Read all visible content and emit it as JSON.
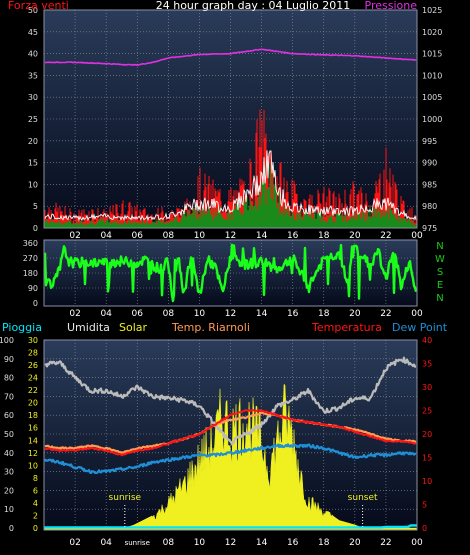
{
  "colors": {
    "background": "#000000",
    "plot_top": "#2a3c5a",
    "plot_bottom": "#050a1a",
    "grid": "#8891a5",
    "wind": "#ff1414",
    "gust": "#ffffff",
    "avg_wind": "#1a8a1a",
    "pressure": "#e030e0",
    "direction": "#19ff19",
    "nwsen": "#19cc19",
    "humidity": "#bbbbbb",
    "solar": "#f0f020",
    "temp_indoor": "#ff9955",
    "temperature": "#ff1414",
    "dew_point": "#1f8fd6",
    "rain": "#00e6ff",
    "sun_marker": "#ffffff"
  },
  "top_chart": {
    "title": "24 hour graph day : 04 Luglio 2011",
    "left_label": "Forza venti",
    "right_label": "Pressione",
    "left_ticks": [
      "0",
      "5",
      "10",
      "15",
      "20",
      "25",
      "30",
      "35",
      "40",
      "45",
      "50"
    ],
    "right_ticks": [
      "975",
      "980",
      "985",
      "990",
      "995",
      "1000",
      "1005",
      "1010",
      "1015",
      "1020",
      "1025"
    ],
    "x_ticks": [
      "02",
      "04",
      "06",
      "08",
      "10",
      "12",
      "14",
      "16",
      "18",
      "20",
      "22",
      "00"
    ]
  },
  "dir_chart": {
    "y_ticks": [
      "0",
      "90",
      "180",
      "270",
      "360"
    ],
    "compass": [
      "N",
      "W",
      "S",
      "E",
      "N"
    ],
    "x_ticks": [
      "02",
      "04",
      "06",
      "08",
      "10",
      "12",
      "14",
      "16",
      "18",
      "20",
      "22",
      "00"
    ]
  },
  "bottom_chart": {
    "legend": {
      "rain": "Pioggia",
      "humidity": "Umidita",
      "solar": "Solar",
      "indoor": "Temp. Riarnoli",
      "temperature": "Temperatura",
      "dew": "Dew Point"
    },
    "y1_ticks": [
      "0",
      "10",
      "20",
      "30",
      "40",
      "50",
      "60",
      "70",
      "80",
      "90",
      "100"
    ],
    "y2_ticks": [
      "0",
      "2",
      "4",
      "6",
      "8",
      "10",
      "12",
      "14",
      "16",
      "18",
      "20",
      "22",
      "24",
      "26",
      "28",
      "30"
    ],
    "y3_ticks": [
      "0",
      "5",
      "10",
      "15",
      "20",
      "25",
      "30",
      "35",
      "40"
    ],
    "x_ticks": [
      "02",
      "04",
      "sunrise",
      "08",
      "10",
      "12",
      "14",
      "16",
      "18",
      "20",
      "22",
      "00"
    ],
    "sunrise_label": "sunrise",
    "sunset_label": "sunset"
  },
  "chart_data": [
    {
      "type": "line",
      "title": "24 hour graph day : 04 Luglio 2011",
      "x_unit": "hour",
      "xlim": [
        0,
        24
      ],
      "ylabel": "Forza venti",
      "ylim": [
        0,
        50
      ],
      "y2label": "Pressione",
      "y2lim": [
        975,
        1025
      ],
      "series": [
        {
          "axis": "y",
          "x": [
            0,
            1,
            2,
            3,
            4,
            5,
            6,
            7,
            8,
            9,
            10,
            11,
            12,
            13,
            14,
            14.5,
            15,
            16,
            17,
            18,
            19,
            20,
            21,
            22,
            22.5,
            23,
            24
          ],
          "values": [
            5,
            4,
            3,
            4,
            3,
            5,
            4,
            3,
            4,
            4,
            10,
            8,
            7,
            9,
            22,
            17,
            12,
            8,
            6,
            7,
            6,
            8,
            6,
            14,
            10,
            5,
            3
          ]
        },
        {
          "axis": "y",
          "x": [
            0,
            2,
            4,
            6,
            8,
            10,
            12,
            14,
            14.5,
            15,
            16,
            18,
            20,
            22,
            23,
            24
          ],
          "values": [
            1.5,
            1.2,
            1.5,
            1.2,
            1.5,
            4,
            3,
            8,
            12,
            6,
            3,
            2.5,
            2.5,
            4,
            2,
            1
          ]
        },
        {
          "axis": "y2",
          "x": [
            0,
            2,
            4,
            5,
            6,
            7,
            8,
            10,
            12,
            14,
            15,
            16,
            18,
            20,
            22,
            24
          ],
          "values": [
            1013,
            1013,
            1012.7,
            1012.5,
            1012.4,
            1013,
            1014,
            1014.8,
            1015,
            1016,
            1015.5,
            1015,
            1014.7,
            1014.5,
            1014,
            1013.5
          ]
        }
      ]
    },
    {
      "type": "scatter",
      "title": "",
      "x_unit": "hour",
      "xlim": [
        0,
        24
      ],
      "ylim": [
        0,
        360
      ],
      "y_ticks": [
        0,
        90,
        180,
        270,
        360
      ],
      "series": [
        {
          "x": [
            0,
            0.5,
            1,
            1.3,
            1.6,
            2,
            3,
            4,
            5,
            6,
            6.5,
            7,
            7.5,
            8,
            8.3,
            8.6,
            9,
            9.5,
            10,
            10.5,
            11,
            11.5,
            12,
            13,
            14,
            15,
            16,
            17,
            18,
            19,
            19.5,
            20,
            21,
            21.5,
            22,
            22.5,
            23,
            23.5,
            24
          ],
          "values": [
            150,
            90,
            200,
            320,
            250,
            240,
            245,
            240,
            250,
            240,
            260,
            230,
            200,
            250,
            20,
            300,
            60,
            280,
            40,
            260,
            220,
            60,
            280,
            230,
            250,
            200,
            270,
            100,
            260,
            300,
            120,
            340,
            220,
            320,
            130,
            340,
            90,
            250,
            30
          ]
        }
      ]
    },
    {
      "type": "area",
      "title": "",
      "x_unit": "hour",
      "xlim": [
        0,
        24
      ],
      "legend": [
        "Pioggia",
        "Umidita",
        "Solar",
        "Temp. Riarnoli",
        "Temperatura",
        "Dew Point"
      ],
      "y1lim": [
        0,
        100
      ],
      "y2lim": [
        0,
        30
      ],
      "y3lim": [
        0,
        40
      ],
      "series": [
        {
          "name": "Umidita",
          "axis": "y1",
          "x": [
            0,
            1,
            2,
            3,
            4,
            5,
            6,
            7,
            8,
            9,
            10,
            11,
            12,
            13,
            14,
            15,
            16,
            17,
            18,
            19,
            20,
            21,
            22,
            23,
            24
          ],
          "values": [
            87,
            88,
            80,
            73,
            73,
            70,
            75,
            70,
            69,
            68,
            65,
            55,
            45,
            50,
            55,
            65,
            68,
            73,
            62,
            64,
            69,
            69,
            85,
            90,
            86
          ]
        },
        {
          "name": "Solar",
          "axis": "y2",
          "x": [
            0,
            5.2,
            5.8,
            6.2,
            7,
            8,
            9,
            10,
            11,
            11.5,
            12,
            13,
            14,
            14.5,
            15,
            15.5,
            16,
            16.5,
            17,
            18,
            19,
            20,
            20.5,
            24
          ],
          "values": [
            0,
            0,
            0.5,
            1,
            2,
            4.5,
            8,
            12.5,
            16.5,
            21,
            18,
            20,
            16,
            11,
            16,
            21,
            17,
            10,
            5,
            3,
            1.2,
            0.5,
            0,
            0
          ]
        },
        {
          "name": "Temp. Riarnoli",
          "axis": "y3",
          "x": [
            0,
            1,
            2,
            3,
            4,
            5,
            6,
            7,
            8,
            9,
            10,
            11,
            12,
            13,
            14,
            15,
            16,
            17,
            18,
            19,
            20,
            21,
            22,
            23,
            24
          ],
          "values": [
            17.5,
            17,
            17,
            17.5,
            17,
            16,
            17,
            17.5,
            18,
            19,
            20,
            22,
            23,
            23.5,
            24.5,
            24,
            23,
            22.5,
            22,
            21.5,
            21,
            20,
            19,
            18.5,
            18.5
          ]
        },
        {
          "name": "Temperatura",
          "axis": "y3",
          "x": [
            0,
            1,
            2,
            3,
            4,
            5,
            6,
            7,
            8,
            9,
            10,
            11,
            12,
            13,
            14,
            15,
            16,
            17,
            18,
            19,
            20,
            21,
            22,
            23,
            24
          ],
          "values": [
            17,
            16.5,
            16.5,
            17,
            16.5,
            15.5,
            16.5,
            17,
            18,
            19,
            20,
            22,
            24,
            25,
            25,
            24,
            23,
            22.5,
            22,
            21.5,
            20.5,
            19.5,
            18.5,
            18.5,
            18
          ]
        },
        {
          "name": "Dew Point",
          "axis": "y3",
          "x": [
            0,
            1,
            2,
            3,
            4,
            5,
            6,
            7,
            8,
            9,
            10,
            11,
            12,
            13,
            14,
            15,
            16,
            17,
            18,
            19,
            20,
            21,
            22,
            23,
            24
          ],
          "values": [
            14.5,
            14,
            13,
            12,
            12,
            12.5,
            13,
            14,
            14.5,
            15,
            15.5,
            15.5,
            16,
            16.5,
            17,
            17.5,
            17.5,
            17.5,
            17,
            16,
            15,
            15.5,
            15.5,
            16,
            15.5
          ]
        },
        {
          "name": "Pioggia",
          "axis": "y1",
          "x": [
            0,
            21.7,
            22,
            23.4,
            23.6,
            24
          ],
          "values": [
            0.3,
            0.3,
            0.6,
            0.6,
            1.4,
            1.4
          ]
        }
      ],
      "annotations": [
        {
          "label": "sunrise",
          "x": 5.2
        },
        {
          "label": "sunset",
          "x": 20.5
        }
      ]
    }
  ]
}
